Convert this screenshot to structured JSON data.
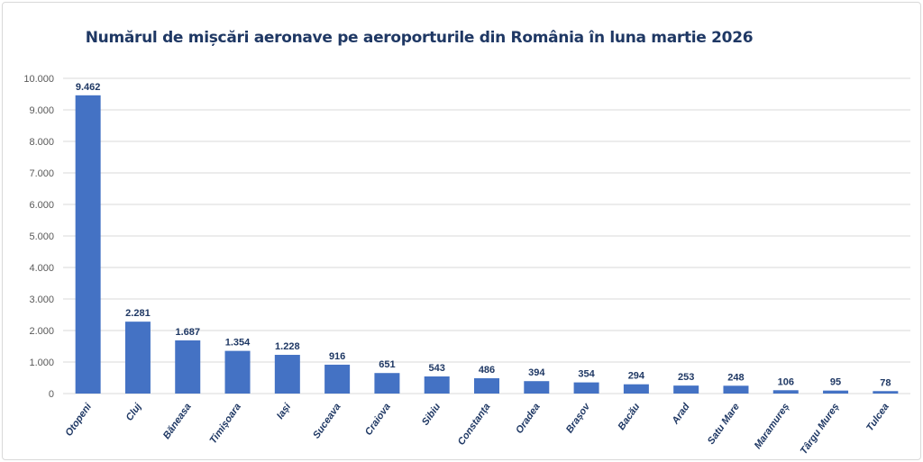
{
  "chart_data": {
    "type": "bar",
    "title": "Numărul de mișcări aeronave pe aeroporturile din România în luna martie 2026",
    "categories": [
      "Otopeni",
      "Cluj",
      "Băneasa",
      "Timișoara",
      "Iași",
      "Suceava",
      "Craiova",
      "Sibiu",
      "Constanța",
      "Oradea",
      "Brașov",
      "Bacău",
      "Arad",
      "Satu Mare",
      "Maramureș",
      "Târgu Mureș",
      "Tulcea"
    ],
    "values": [
      9462,
      2281,
      1687,
      1354,
      1228,
      916,
      651,
      543,
      486,
      394,
      354,
      294,
      253,
      248,
      106,
      95,
      78
    ],
    "data_labels": [
      "9.462",
      "2.281",
      "1.687",
      "1.354",
      "1.228",
      "916",
      "651",
      "543",
      "486",
      "394",
      "354",
      "294",
      "253",
      "248",
      "106",
      "95",
      "78"
    ],
    "ylim": [
      0,
      10000
    ],
    "yticks": [
      "0",
      "1.000",
      "2.000",
      "3.000",
      "4.000",
      "5.000",
      "6.000",
      "7.000",
      "8.000",
      "9.000",
      "10.000"
    ],
    "xlabel": "",
    "ylabel": "",
    "grid": true,
    "legend": "none",
    "colors": {
      "bar": "#4472c4",
      "text": "#1f3864",
      "grid": "#d9d9d9"
    }
  }
}
